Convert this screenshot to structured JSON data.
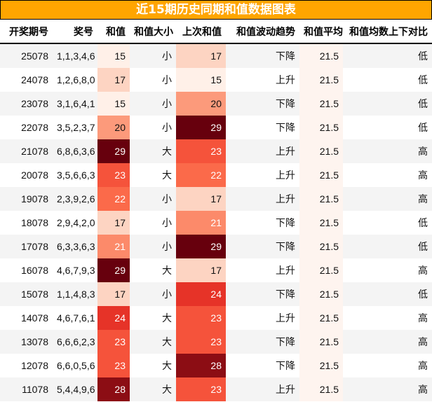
{
  "title": "近15期历史同期和值数据图表",
  "headers": [
    "开奖期号",
    "奖号",
    "和值",
    "和值大小",
    "上次和值",
    "和值波动趋势",
    "和值平均",
    "和值均数上下对比"
  ],
  "rows": [
    [
      "25078",
      "1,1,3,4,6",
      "15",
      "小",
      "17",
      "下降",
      "21.5",
      "低"
    ],
    [
      "24078",
      "1,2,6,8,0",
      "17",
      "小",
      "15",
      "上升",
      "21.5",
      "低"
    ],
    [
      "23078",
      "3,1,6,4,1",
      "15",
      "小",
      "20",
      "下降",
      "21.5",
      "低"
    ],
    [
      "22078",
      "3,5,2,3,7",
      "20",
      "小",
      "29",
      "下降",
      "21.5",
      "低"
    ],
    [
      "21078",
      "6,8,6,3,6",
      "29",
      "大",
      "23",
      "上升",
      "21.5",
      "高"
    ],
    [
      "20078",
      "3,5,6,6,3",
      "23",
      "大",
      "22",
      "上升",
      "21.5",
      "高"
    ],
    [
      "19078",
      "2,3,9,2,6",
      "22",
      "小",
      "17",
      "上升",
      "21.5",
      "高"
    ],
    [
      "18078",
      "2,9,4,2,0",
      "17",
      "小",
      "21",
      "下降",
      "21.5",
      "低"
    ],
    [
      "17078",
      "6,3,3,6,3",
      "21",
      "小",
      "29",
      "下降",
      "21.5",
      "低"
    ],
    [
      "16078",
      "4,6,7,9,3",
      "29",
      "大",
      "17",
      "上升",
      "21.5",
      "高"
    ],
    [
      "15078",
      "1,1,4,8,3",
      "17",
      "小",
      "24",
      "下降",
      "21.5",
      "低"
    ],
    [
      "14078",
      "4,6,7,6,1",
      "24",
      "大",
      "23",
      "上升",
      "21.5",
      "高"
    ],
    [
      "13078",
      "6,6,6,2,3",
      "23",
      "大",
      "23",
      "下降",
      "21.5",
      "高"
    ],
    [
      "12078",
      "6,6,0,5,6",
      "23",
      "大",
      "28",
      "下降",
      "21.5",
      "高"
    ],
    [
      "11078",
      "5,4,4,9,6",
      "28",
      "大",
      "23",
      "上升",
      "21.5",
      "高"
    ]
  ],
  "heat_colors": {
    "15": "#fff0e8",
    "17": "#fdd4c2",
    "20": "#fc9a7b",
    "21": "#fc8a6a",
    "22": "#fb6a4a",
    "23": "#f5533b",
    "24": "#e63328",
    "28": "#8c0d14",
    "29": "#67000d"
  },
  "title_color": "#ffa500"
}
